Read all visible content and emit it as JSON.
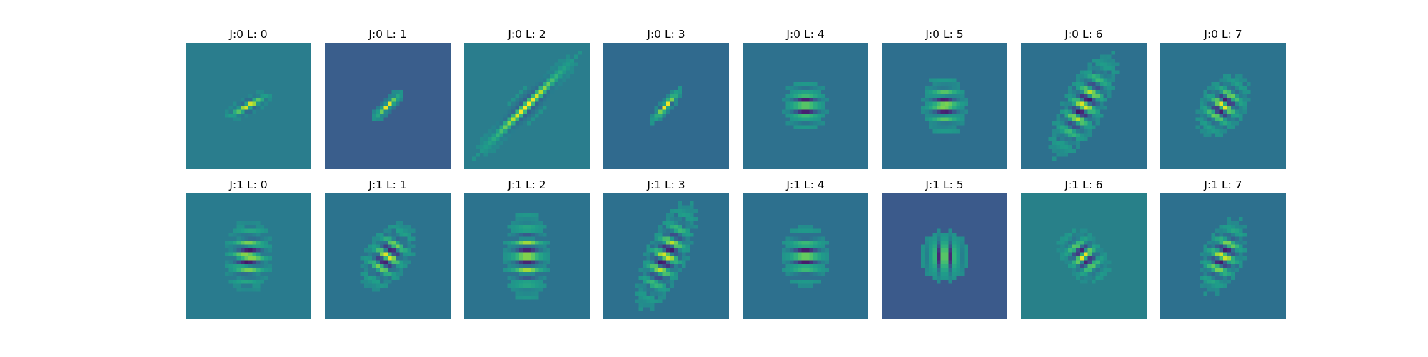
{
  "chart_data": {
    "type": "heatmap",
    "colormap": "viridis",
    "grid": false,
    "rows": [
      {
        "J": 0,
        "panels": [
          {
            "title": "J:0 L: 0",
            "background": "#2a7d8d",
            "envelope": [
              6,
              15
            ],
            "angle": 62,
            "freq": 0.32
          },
          {
            "title": "J:0 L: 1",
            "background": "#3a5e8c",
            "envelope": [
              5,
              12
            ],
            "angle": 48,
            "freq": 0.34
          },
          {
            "title": "J:0 L: 2",
            "background": "#2a7d8d",
            "envelope": [
              8,
              42
            ],
            "angle": 45,
            "freq": 0.26
          },
          {
            "title": "J:0 L: 3",
            "background": "#306a8e",
            "envelope": [
              4,
              14
            ],
            "angle": 40,
            "freq": 0.3
          },
          {
            "title": "J:0 L: 4",
            "background": "#2e718e",
            "envelope": [
              16,
              13
            ],
            "angle": -90,
            "freq": 0.34
          },
          {
            "title": "J:0 L: 5",
            "background": "#2e6f8e",
            "envelope": [
              18,
              13
            ],
            "angle": -92,
            "freq": 0.3
          },
          {
            "title": "J:0 L: 6",
            "background": "#2d708e",
            "envelope": [
              34,
              12
            ],
            "angle": -62,
            "freq": 0.26
          },
          {
            "title": "J:0 L: 7",
            "background": "#2c738e",
            "envelope": [
              20,
              13
            ],
            "angle": -55,
            "freq": 0.3
          }
        ]
      },
      {
        "J": 1,
        "panels": [
          {
            "title": "J:1 L: 0",
            "background": "#297b8e",
            "envelope": [
              22,
              14
            ],
            "angle": -85,
            "freq": 0.3
          },
          {
            "title": "J:1 L: 1",
            "background": "#2c738e",
            "envelope": [
              22,
              13
            ],
            "angle": -58,
            "freq": 0.28
          },
          {
            "title": "J:1 L: 2",
            "background": "#2c738e",
            "envelope": [
              27,
              13
            ],
            "angle": -90,
            "freq": 0.28
          },
          {
            "title": "J:1 L: 3",
            "background": "#2d708e",
            "envelope": [
              34,
              12
            ],
            "angle": -66,
            "freq": 0.26
          },
          {
            "title": "J:1 L: 4",
            "background": "#2d708e",
            "envelope": [
              18,
              14
            ],
            "angle": -90,
            "freq": 0.32
          },
          {
            "title": "J:1 L: 5",
            "background": "#3b5a8b",
            "envelope": [
              14,
              15
            ],
            "angle": 0,
            "freq": 0.34
          },
          {
            "title": "J:1 L: 6",
            "background": "#288089",
            "envelope": [
              18,
              12
            ],
            "angle": 52,
            "freq": 0.3
          },
          {
            "title": "J:1 L: 7",
            "background": "#2d708e",
            "envelope": [
              24,
              12
            ],
            "angle": -66,
            "freq": 0.28
          }
        ]
      }
    ]
  }
}
